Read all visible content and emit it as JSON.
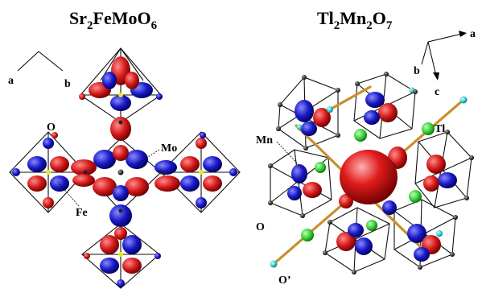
{
  "left_panel": {
    "title_parts": [
      "Sr",
      "2",
      "FeMoO",
      "6"
    ],
    "axis_a": "a",
    "axis_b": "b",
    "label_o": "O",
    "label_mo": "Mo",
    "label_fe": "Fe"
  },
  "right_panel": {
    "title_parts": [
      "Tl",
      "2",
      "Mn",
      "2",
      "O",
      "7"
    ],
    "axis_a": "a",
    "axis_b": "b",
    "axis_c": "c",
    "label_tl": "Tl",
    "label_mn": "Mn",
    "label_o": "O",
    "label_o_prime": "O’"
  },
  "colors": {
    "lobe_red": "#d41a1a",
    "lobe_blue": "#1a1ac8",
    "tl_green": "#33cc33",
    "oxygen_cyan": "#33cccc",
    "rod_gold": "#c8902c"
  }
}
